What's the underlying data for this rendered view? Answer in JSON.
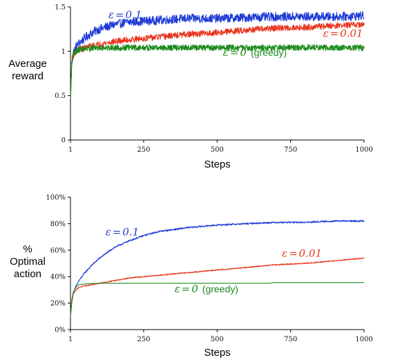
{
  "chart_data": [
    {
      "type": "line",
      "xlabel": "Steps",
      "ylabel_lines": [
        "Average",
        "reward"
      ],
      "xlim": [
        1,
        1000
      ],
      "ylim": [
        0,
        1.5
      ],
      "xticks": [
        1,
        250,
        500,
        750,
        1000
      ],
      "xtick_labels": [
        "1",
        "250",
        "500",
        "750",
        "1000"
      ],
      "yticks": [
        0,
        0.5,
        1,
        1.5
      ],
      "ytick_labels": [
        "0",
        "0.5",
        "1",
        "1.5"
      ],
      "grid": false,
      "series": [
        {
          "eps": "0.1",
          "suffix": "",
          "color": "#1f3bd6",
          "noise": 0.05,
          "label_at": [
            130,
            1.37
          ],
          "x": [
            1,
            5,
            10,
            20,
            30,
            50,
            75,
            100,
            150,
            200,
            250,
            300,
            400,
            500,
            600,
            700,
            800,
            900,
            1000
          ],
          "values": [
            0.45,
            0.85,
            0.98,
            1.05,
            1.09,
            1.15,
            1.21,
            1.25,
            1.3,
            1.33,
            1.34,
            1.35,
            1.37,
            1.37,
            1.38,
            1.39,
            1.39,
            1.39,
            1.4
          ]
        },
        {
          "eps": "0.01",
          "suffix": "",
          "color": "#e8341c",
          "noise": 0.035,
          "label_at": [
            860,
            1.16
          ],
          "x": [
            1,
            5,
            10,
            20,
            30,
            50,
            75,
            100,
            150,
            200,
            300,
            400,
            500,
            600,
            700,
            800,
            900,
            1000
          ],
          "values": [
            0.45,
            0.85,
            0.95,
            1.0,
            1.02,
            1.04,
            1.06,
            1.08,
            1.11,
            1.13,
            1.16,
            1.19,
            1.21,
            1.24,
            1.26,
            1.27,
            1.29,
            1.3
          ]
        },
        {
          "eps": "0",
          "suffix": "(greedy)",
          "color": "#1a8a1a",
          "noise": 0.035,
          "label_at": [
            520,
            0.95
          ],
          "x": [
            1,
            5,
            10,
            20,
            30,
            50,
            100,
            200,
            500,
            1000
          ],
          "values": [
            0.45,
            0.85,
            0.97,
            1.0,
            1.02,
            1.03,
            1.04,
            1.04,
            1.04,
            1.04
          ]
        }
      ]
    },
    {
      "type": "line",
      "xlabel": "Steps",
      "ylabel_lines": [
        "%",
        "Optimal",
        "action"
      ],
      "xlim": [
        1,
        1000
      ],
      "ylim": [
        0,
        100
      ],
      "xticks": [
        1,
        250,
        500,
        750,
        1000
      ],
      "xtick_labels": [
        "1",
        "250",
        "500",
        "750",
        "1000"
      ],
      "yticks": [
        0,
        20,
        40,
        60,
        80,
        100
      ],
      "ytick_labels": [
        "0%",
        "20%",
        "40%",
        "60%",
        "80%",
        "100%"
      ],
      "grid": false,
      "series": [
        {
          "eps": "0.1",
          "suffix": "",
          "color": "#1f3bd6",
          "noise": 0.6,
          "label_at": [
            120,
            71
          ],
          "x": [
            1,
            5,
            10,
            20,
            30,
            50,
            75,
            100,
            150,
            200,
            250,
            300,
            400,
            500,
            600,
            700,
            800,
            900,
            1000
          ],
          "values": [
            10,
            20,
            27,
            33,
            37,
            43,
            49,
            54,
            62,
            67,
            71,
            74,
            77,
            79,
            80,
            81,
            81,
            82,
            82
          ]
        },
        {
          "eps": "0.01",
          "suffix": "",
          "color": "#e8341c",
          "noise": 0.4,
          "label_at": [
            720,
            55
          ],
          "x": [
            1,
            5,
            10,
            20,
            30,
            50,
            100,
            150,
            200,
            300,
            400,
            500,
            600,
            700,
            800,
            900,
            1000
          ],
          "values": [
            10,
            20,
            27,
            30,
            32,
            33,
            35,
            37,
            39,
            41,
            43,
            45,
            47,
            49,
            50,
            52,
            54
          ]
        },
        {
          "eps": "0",
          "suffix": "(greedy)",
          "color": "#1a8a1a",
          "noise": 0,
          "label_at": [
            355,
            28
          ],
          "x": [
            1,
            5,
            10,
            20,
            30,
            50,
            100,
            200,
            300,
            500,
            680,
            690,
            1000
          ],
          "values": [
            10,
            22,
            28,
            32,
            34,
            34.5,
            35,
            35,
            35,
            35,
            35,
            35.5,
            35.5
          ]
        }
      ]
    }
  ]
}
